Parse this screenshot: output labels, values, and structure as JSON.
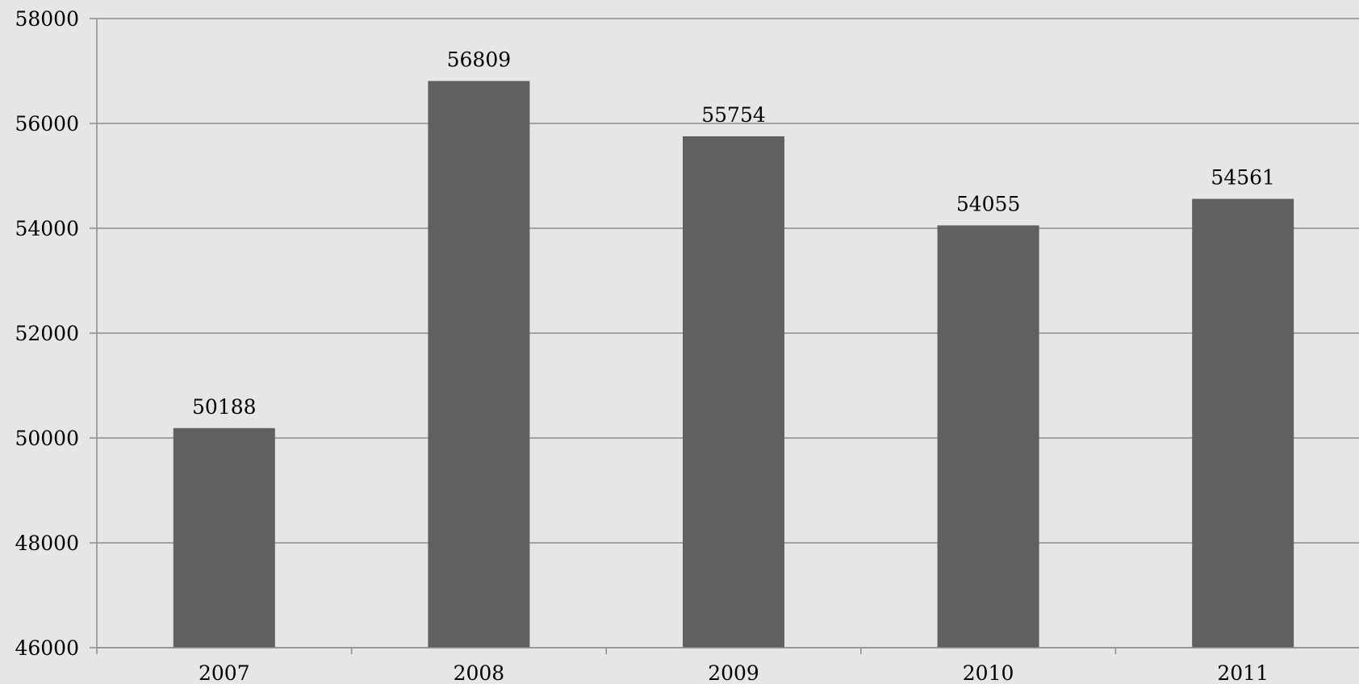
{
  "chart_data": {
    "type": "bar",
    "categories": [
      "2007",
      "2008",
      "2009",
      "2010",
      "2011"
    ],
    "values": [
      50188,
      56809,
      55754,
      54055,
      54561
    ],
    "data_labels": [
      "50188",
      "56809",
      "55754",
      "54055",
      "54561"
    ],
    "y_ticks": [
      46000,
      48000,
      50000,
      52000,
      54000,
      56000,
      58000
    ],
    "y_tick_labels": [
      "46000",
      "48000",
      "50000",
      "52000",
      "54000",
      "56000",
      "58000"
    ],
    "ylim": [
      46000,
      58000
    ],
    "title": "",
    "xlabel": "",
    "ylabel": "",
    "grid": true,
    "legend": "none",
    "colors": {
      "background": "#e6e6e6",
      "bar": "#606060",
      "gridline": "#8c8c8c",
      "axis": "#8c8c8c"
    }
  }
}
